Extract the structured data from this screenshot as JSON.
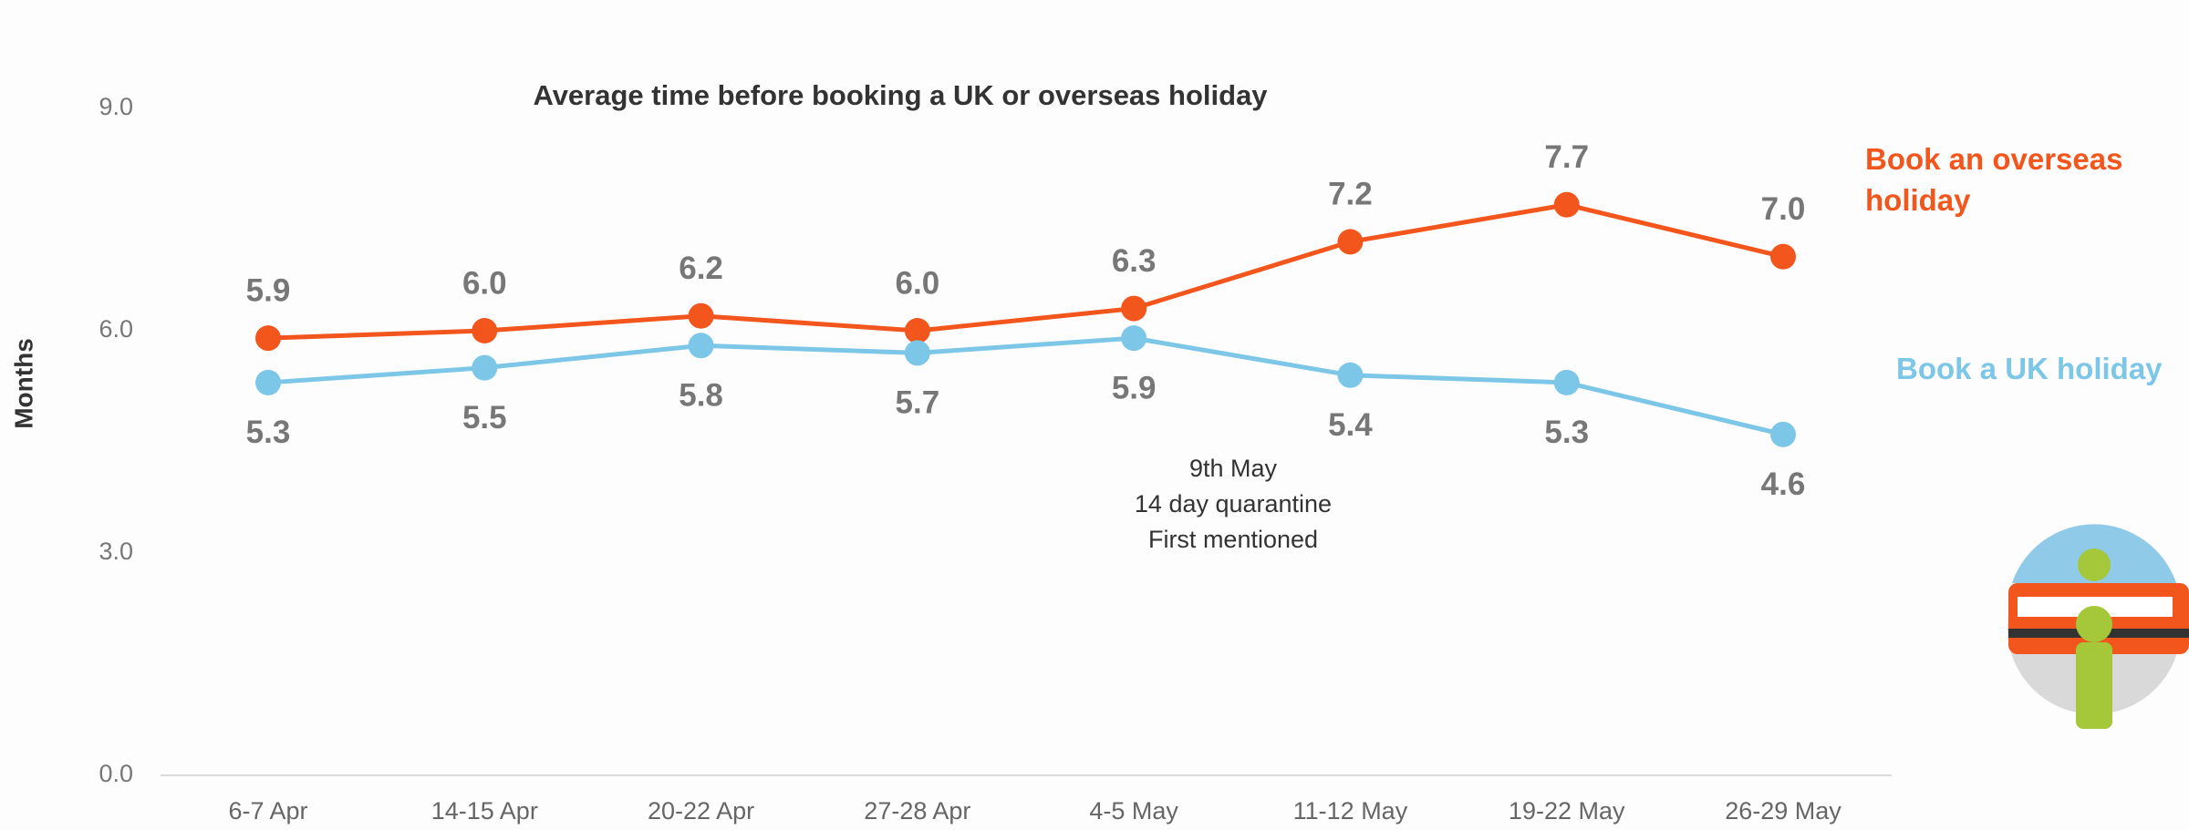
{
  "chart_data": {
    "type": "line",
    "title": "Average time before booking a UK or overseas holiday",
    "y_label": "Months",
    "categories": [
      "6-7 Apr",
      "14-15 Apr",
      "20-22 Apr",
      "27-28 Apr",
      "4-5 May",
      "11-12 May",
      "19-22 May",
      "26-29 May"
    ],
    "series": [
      {
        "name": "Book an overseas holiday",
        "color": "#f2561d",
        "values": [
          5.9,
          6.0,
          6.2,
          6.0,
          6.3,
          7.2,
          7.7,
          7.0
        ],
        "value_labels": [
          "5.9",
          "6.0",
          "6.2",
          "6.0",
          "6.3",
          "7.2",
          "7.7",
          "7.0"
        ]
      },
      {
        "name": "Book a UK holiday",
        "color": "#7cc6e8",
        "values": [
          5.3,
          5.5,
          5.8,
          5.7,
          5.9,
          5.4,
          5.3,
          4.6
        ],
        "value_labels": [
          "5.3",
          "5.5",
          "5.8",
          "5.7",
          "5.9",
          "5.4",
          "5.3",
          "4.6"
        ]
      }
    ],
    "ylim": [
      0,
      9
    ],
    "yticks": [
      {
        "value": 0,
        "label": "0.0"
      },
      {
        "value": 3,
        "label": "3.0"
      },
      {
        "value": 6,
        "label": "6.0"
      },
      {
        "value": 9,
        "label": "9.0"
      }
    ],
    "grid": false,
    "annotation": [
      "9th May",
      "14 day quarantine",
      "First mentioned"
    ]
  }
}
